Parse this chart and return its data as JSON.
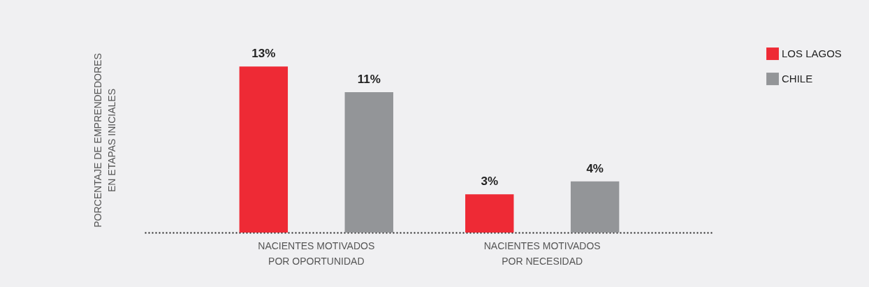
{
  "chart_data": {
    "type": "bar",
    "ylabel": "PORCENTAJE DE EMPRENDEDORES\nEN ETAPAS INICIALES",
    "categories": [
      "NACIENTES MOTIVADOS\nPOR OPORTUNIDAD",
      "NACIENTES MOTIVADOS\nPOR NECESIDAD"
    ],
    "series": [
      {
        "name": "LOS LAGOS",
        "color": "#ee2a35",
        "values": [
          13,
          3
        ],
        "value_labels": [
          "13%",
          "3%"
        ]
      },
      {
        "name": "CHILE",
        "color": "#939598",
        "values": [
          11,
          4
        ],
        "value_labels": [
          "11%",
          "4%"
        ]
      }
    ],
    "legend": "top right"
  }
}
